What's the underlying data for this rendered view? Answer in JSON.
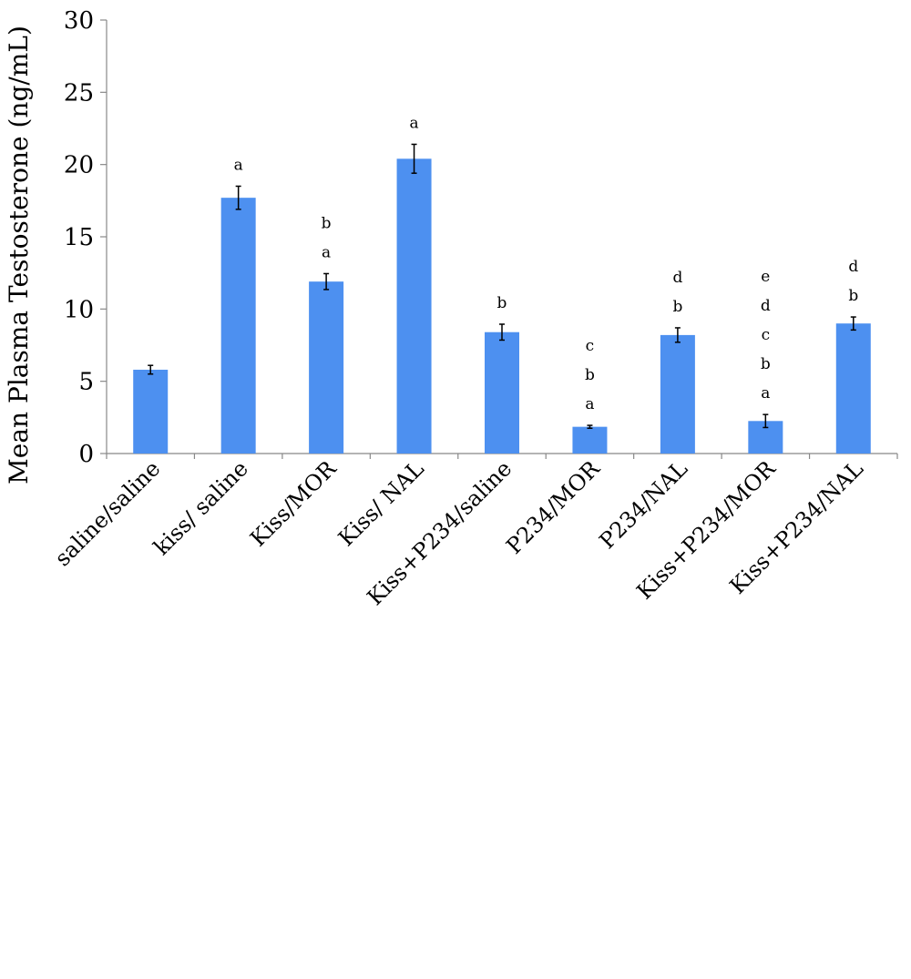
{
  "chart_data": {
    "type": "bar",
    "title": "",
    "xlabel": "",
    "ylabel": "Mean Plasma Testosterone (ng/mL)",
    "ylim": [
      0,
      30
    ],
    "yticks": [
      0,
      5,
      10,
      15,
      20,
      25,
      30
    ],
    "grid": false,
    "legend": "none",
    "bar_color": "#4d90f0",
    "categories": [
      "saline/saline",
      "kiss/ saline",
      "Kiss/MOR",
      "Kiss/ NAL",
      "Kiss+P234/saline",
      "P234/MOR",
      "P234/NAL",
      "Kiss+P234/MOR",
      "Kiss+P234/NAL"
    ],
    "values": [
      5.8,
      17.7,
      11.9,
      20.4,
      8.4,
      1.85,
      8.2,
      2.25,
      9.0
    ],
    "errors": [
      0.3,
      0.8,
      0.55,
      1.0,
      0.55,
      0.1,
      0.5,
      0.45,
      0.45
    ],
    "significance": [
      [],
      [
        "a"
      ],
      [
        "b",
        "a"
      ],
      [
        "a"
      ],
      [
        "b"
      ],
      [
        "c",
        "b",
        "a"
      ],
      [
        "d",
        "b"
      ],
      [
        "e",
        "d",
        "c",
        "b",
        "a"
      ],
      [
        "d",
        "b"
      ]
    ]
  }
}
